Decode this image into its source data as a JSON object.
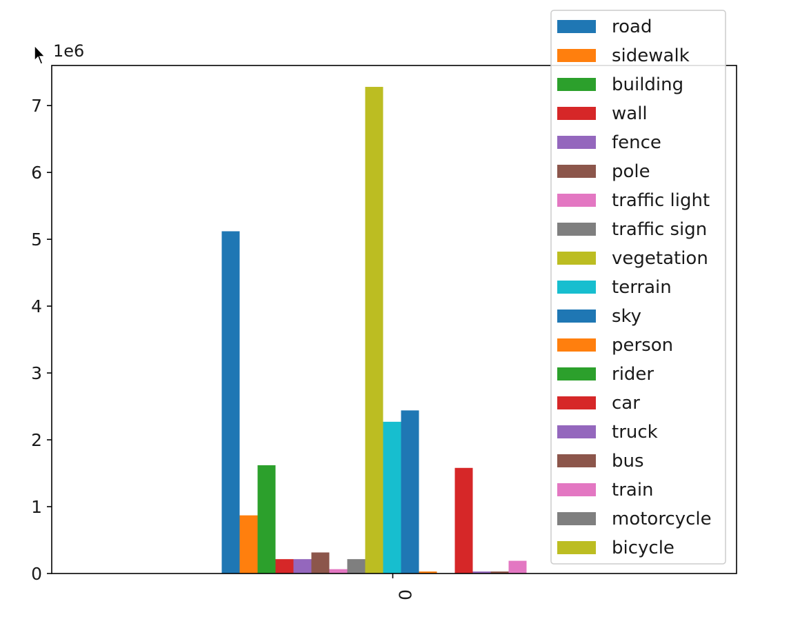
{
  "chart_data": {
    "type": "bar",
    "categories": [
      "0"
    ],
    "y_offset_label": "1e6",
    "ylim": [
      0,
      7600000
    ],
    "yticks": [
      0,
      1000000,
      2000000,
      3000000,
      4000000,
      5000000,
      6000000,
      7000000
    ],
    "ytick_labels": [
      "0",
      "1",
      "2",
      "3",
      "4",
      "5",
      "6",
      "7"
    ],
    "legend_position": "upper-right",
    "grid": false,
    "series": [
      {
        "name": "road",
        "color": "#1f77b4",
        "values": [
          5120000
        ]
      },
      {
        "name": "sidewalk",
        "color": "#ff7f0e",
        "values": [
          870000
        ]
      },
      {
        "name": "building",
        "color": "#2ca02c",
        "values": [
          1620000
        ]
      },
      {
        "name": "wall",
        "color": "#d62728",
        "values": [
          215000
        ]
      },
      {
        "name": "fence",
        "color": "#9467bd",
        "values": [
          215000
        ]
      },
      {
        "name": "pole",
        "color": "#8c564b",
        "values": [
          315000
        ]
      },
      {
        "name": "traffic light",
        "color": "#e377c2",
        "values": [
          65000
        ]
      },
      {
        "name": "traffic sign",
        "color": "#7f7f7f",
        "values": [
          215000
        ]
      },
      {
        "name": "vegetation",
        "color": "#bcbd22",
        "values": [
          7280000
        ]
      },
      {
        "name": "terrain",
        "color": "#17becf",
        "values": [
          2270000
        ]
      },
      {
        "name": "sky",
        "color": "#1f77b4",
        "values": [
          2440000
        ]
      },
      {
        "name": "person",
        "color": "#ff7f0e",
        "values": [
          30000
        ]
      },
      {
        "name": "rider",
        "color": "#2ca02c",
        "values": [
          5000
        ]
      },
      {
        "name": "car",
        "color": "#d62728",
        "values": [
          1580000
        ]
      },
      {
        "name": "truck",
        "color": "#9467bd",
        "values": [
          30000
        ]
      },
      {
        "name": "bus",
        "color": "#8c564b",
        "values": [
          30000
        ]
      },
      {
        "name": "train",
        "color": "#e377c2",
        "values": [
          190000
        ]
      },
      {
        "name": "motorcycle",
        "color": "#7f7f7f",
        "values": [
          5000
        ]
      },
      {
        "name": "bicycle",
        "color": "#bcbd22",
        "values": [
          5000
        ]
      }
    ]
  }
}
